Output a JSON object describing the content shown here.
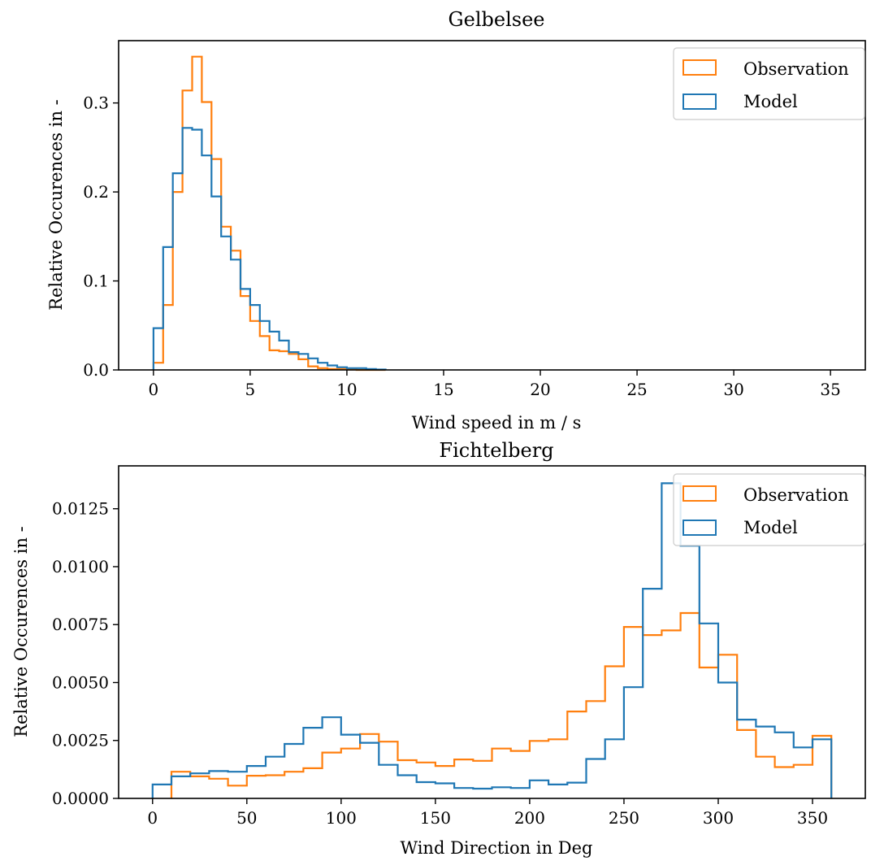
{
  "colors": {
    "observation": "#ff7f0e",
    "model": "#1f77b4"
  },
  "chart_data": [
    {
      "type": "histogram",
      "title": "Gelbelsee",
      "xlabel": "Wind speed in m / s",
      "ylabel": "Relative Occurences in -",
      "xlim": [
        -1.8,
        36.8
      ],
      "ylim": [
        0,
        0.37
      ],
      "xticks": [
        0,
        5,
        10,
        15,
        20,
        25,
        30,
        35
      ],
      "xtick_labels": [
        "0",
        "5",
        "10",
        "15",
        "20",
        "25",
        "30",
        "35"
      ],
      "yticks": [
        0,
        0.1,
        0.2,
        0.3
      ],
      "ytick_labels": [
        "0.0",
        "0.1",
        "0.2",
        "0.3"
      ],
      "legend_position": "top-right",
      "bin_width": 0.5,
      "bin_start": 0,
      "series": [
        {
          "name": "Observation",
          "color": "#ff7f0e",
          "values": [
            0.008,
            0.073,
            0.2,
            0.314,
            0.352,
            0.301,
            0.237,
            0.161,
            0.134,
            0.083,
            0.055,
            0.038,
            0.022,
            0.021,
            0.018,
            0.012,
            0.004,
            0.002,
            0.001,
            0.001,
            0.0005,
            0,
            0,
            0
          ]
        },
        {
          "name": "Model",
          "color": "#1f77b4",
          "values": [
            0.047,
            0.138,
            0.221,
            0.272,
            0.27,
            0.241,
            0.195,
            0.15,
            0.124,
            0.091,
            0.073,
            0.055,
            0.043,
            0.033,
            0.02,
            0.018,
            0.013,
            0.008,
            0.005,
            0.003,
            0.002,
            0.002,
            0.001,
            0.0005
          ]
        }
      ]
    },
    {
      "type": "histogram",
      "title": "Fichtelberg",
      "xlabel": "Wind Direction in Deg",
      "ylabel": "Relative Occurences in -",
      "xlim": [
        -18,
        378
      ],
      "ylim": [
        0,
        0.01435
      ],
      "xticks": [
        0,
        50,
        100,
        150,
        200,
        250,
        300,
        350
      ],
      "xtick_labels": [
        "0",
        "50",
        "100",
        "150",
        "200",
        "250",
        "300",
        "350"
      ],
      "yticks": [
        0,
        0.0025,
        0.005,
        0.0075,
        0.01,
        0.0125
      ],
      "ytick_labels": [
        "0.0000",
        "0.0025",
        "0.0050",
        "0.0075",
        "0.0100",
        "0.0125"
      ],
      "legend_position": "top-right",
      "series": [
        {
          "name": "Observation",
          "color": "#ff7f0e",
          "bin_width": 10,
          "bin_start": 10,
          "values": [
            0.00115,
            0.00095,
            0.00085,
            0.00055,
            0.00098,
            0.001,
            0.00115,
            0.0013,
            0.00198,
            0.00215,
            0.00278,
            0.00245,
            0.00165,
            0.00155,
            0.0014,
            0.00168,
            0.00162,
            0.00215,
            0.00205,
            0.00248,
            0.00255,
            0.00375,
            0.0042,
            0.0057,
            0.0074,
            0.00705,
            0.00725,
            0.008,
            0.00565,
            0.0062,
            0.00295,
            0.0018,
            0.00135,
            0.00145,
            0.0027
          ]
        },
        {
          "name": "Model",
          "color": "#1f77b4",
          "bin_width": 10,
          "bin_start": 0,
          "values": [
            0.0006,
            0.00095,
            0.00108,
            0.00118,
            0.00115,
            0.0014,
            0.0018,
            0.00235,
            0.00305,
            0.0035,
            0.00275,
            0.0024,
            0.00145,
            0.001,
            0.0007,
            0.00065,
            0.00045,
            0.00042,
            0.00048,
            0.00045,
            0.00078,
            0.0006,
            0.00068,
            0.0017,
            0.00255,
            0.0048,
            0.00905,
            0.0136,
            0.0109,
            0.00755,
            0.005,
            0.0034,
            0.0031,
            0.00285,
            0.0022,
            0.00255
          ]
        }
      ]
    }
  ]
}
